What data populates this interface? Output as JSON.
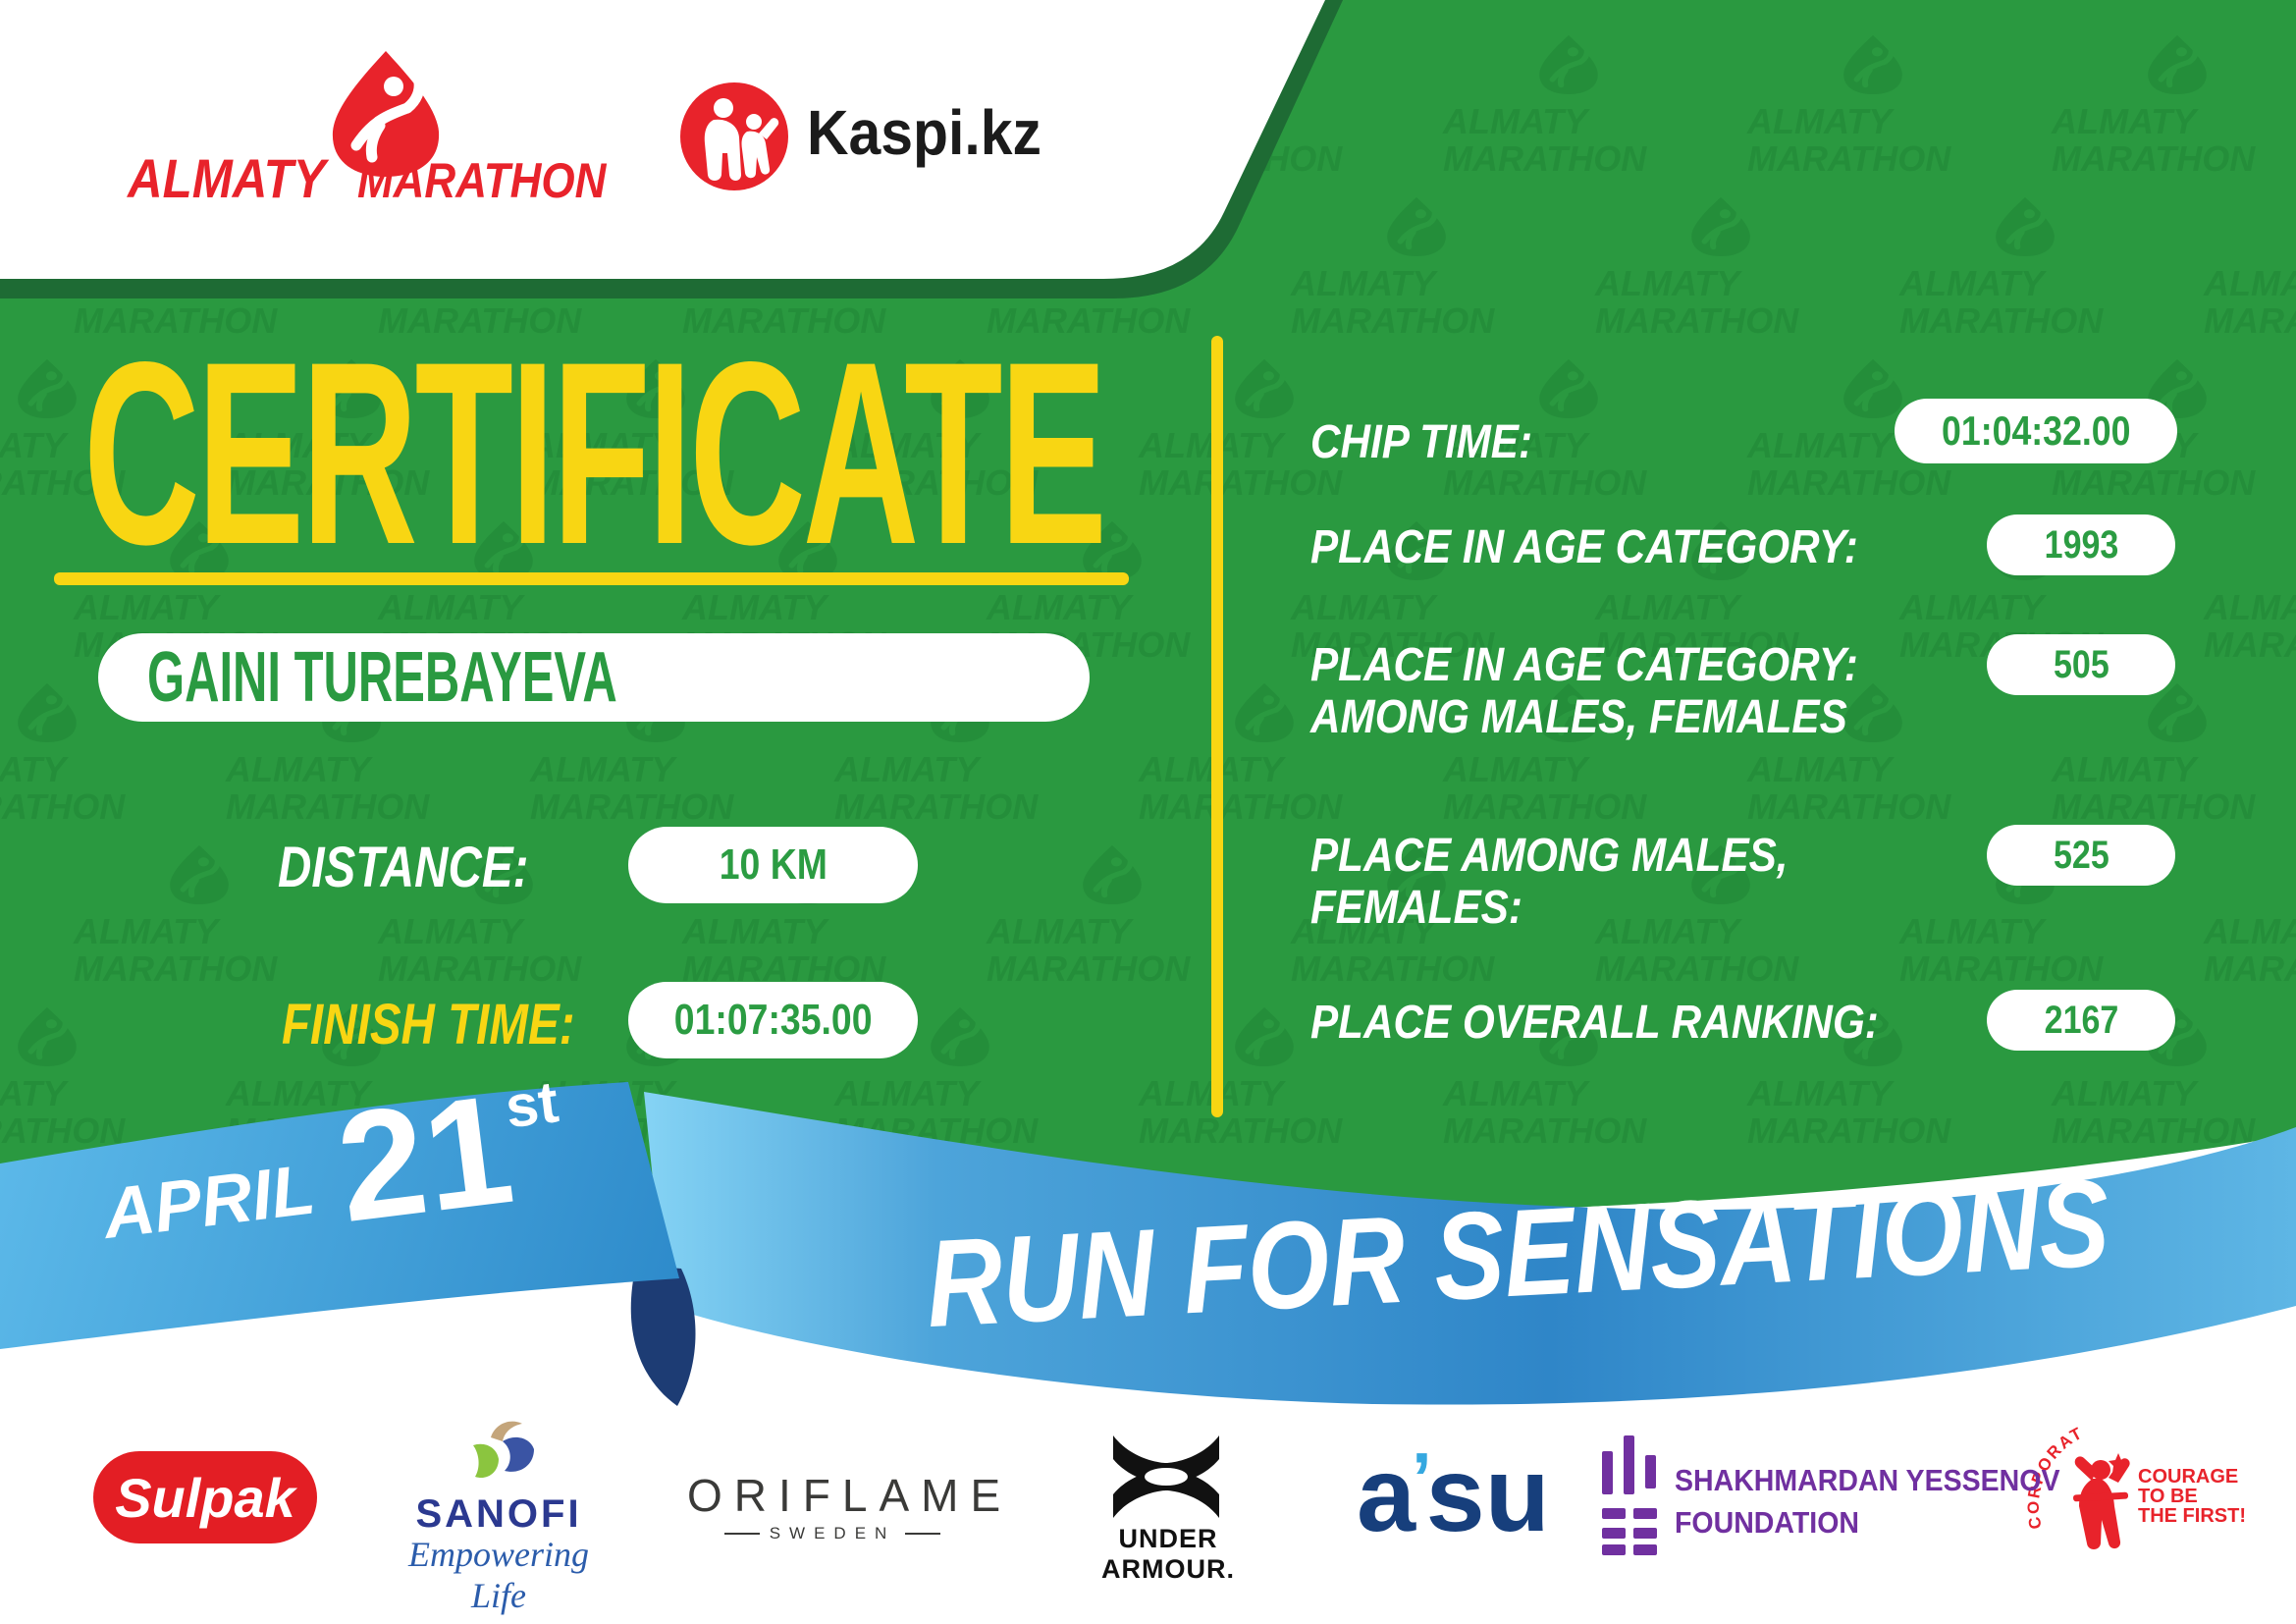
{
  "header": {
    "almaty_logo": {
      "line1": "ALMATY",
      "line2": "MARATHON"
    },
    "kaspi_logo": {
      "text": "Kaspi.kz"
    }
  },
  "certificate": {
    "title": "CERTIFICATE",
    "runner_name": "GAINI TUREBAYEVA",
    "distance_label": "DISTANCE:",
    "distance_value": "10 KM",
    "finish_label": "FINISH TIME:",
    "finish_value": "01:07:35.00"
  },
  "results": {
    "rows": [
      {
        "label": "CHIP TIME:",
        "value": "01:04:32.00"
      },
      {
        "label": "PLACE IN AGE CATEGORY:",
        "value": "1993"
      },
      {
        "label_line1": "PLACE IN AGE CATEGORY:",
        "label_line2": "AMONG MALES, FEMALES",
        "value": "505"
      },
      {
        "label_line1": "PLACE AMONG MALES,",
        "label_line2": "FEMALES:",
        "value": "525"
      },
      {
        "label": "PLACE OVERALL RANKING:",
        "value": "2167"
      }
    ]
  },
  "ribbon": {
    "month": "APRIL",
    "day": "21",
    "day_suffix": "st",
    "slogan": "RUN FOR SENSATIONS"
  },
  "watermark": {
    "line1": "ALMATY",
    "line2": "MARATHON"
  },
  "sponsors": {
    "sulpak": {
      "name": "Sulpak"
    },
    "sanofi": {
      "name": "SANOFI",
      "tagline": "Empowering Life"
    },
    "oriflame": {
      "name": "ORIFLAME",
      "sub": "SWEDEN"
    },
    "under_armour": {
      "name": "UNDER ARMOUR."
    },
    "asu": {
      "part1": "a",
      "tick": "’",
      "part2": "su"
    },
    "yessenov": {
      "line1": "SHAKHMARDAN YESSENOV",
      "line2": "FOUNDATION"
    },
    "courage": {
      "arc": "CORPORATE FUND",
      "line1": "COURAGE",
      "line2": "TO BE",
      "line3": "THE FIRST!"
    }
  },
  "colors": {
    "green": "#2a9940",
    "dark_green": "#1e6b34",
    "yellow": "#f8d613",
    "red": "#e8232b",
    "ribbon_blue": "#3e9ed8",
    "ribbon_navy": "#1d3c74",
    "purple": "#7030a0",
    "sanofi_blue": "#2b3990",
    "asu_navy": "#173f7c"
  }
}
